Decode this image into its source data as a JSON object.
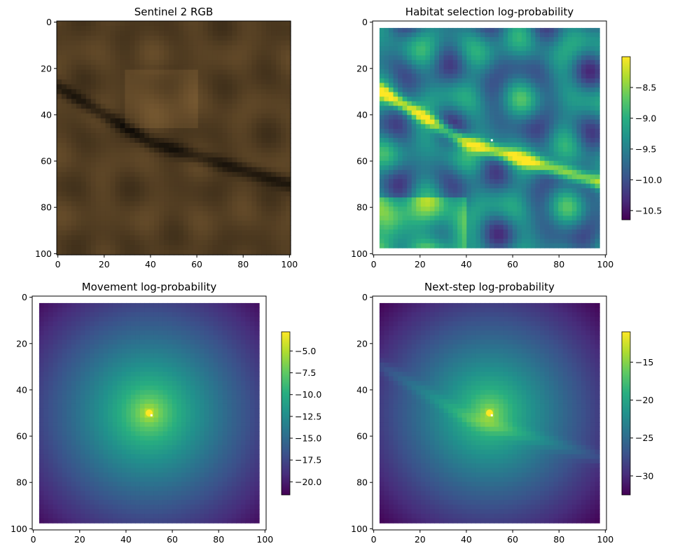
{
  "figure": {
    "background": "#ffffff"
  },
  "chart_data": [
    {
      "id": "rgb",
      "type": "heatmap",
      "title": "Sentinel 2 RGB",
      "xlim": [
        -0.5,
        100.5
      ],
      "ylim": [
        100.5,
        -0.5
      ],
      "xticks": [
        0,
        20,
        40,
        60,
        80,
        100
      ],
      "yticks": [
        0,
        20,
        40,
        60,
        80,
        100
      ],
      "extent": [
        -0.5,
        100.5,
        -0.5,
        100.5
      ],
      "colormap": "rgb",
      "colorbar": null
    },
    {
      "id": "habitat",
      "type": "heatmap",
      "title": "Habitat selection log-probability",
      "xlim": [
        -0.5,
        100.5
      ],
      "ylim": [
        100.5,
        -0.5
      ],
      "xticks": [
        0,
        20,
        40,
        60,
        80,
        100
      ],
      "yticks": [
        0,
        20,
        40,
        60,
        80,
        100
      ],
      "extent": [
        2.5,
        97.5,
        2.5,
        97.5
      ],
      "colormap": "viridis",
      "current_location": [
        51,
        51
      ],
      "colorbar": {
        "vmin": -10.65,
        "vmax": -8.0,
        "ticks": [
          -10.5,
          -10.0,
          -9.5,
          -9.0,
          -8.5
        ],
        "labels": [
          "−10.5",
          "−10.0",
          "−9.5",
          "−9.0",
          "−8.5"
        ]
      }
    },
    {
      "id": "movement",
      "type": "heatmap",
      "title": "Movement log-probability",
      "xlim": [
        -0.5,
        100.5
      ],
      "ylim": [
        100.5,
        -0.5
      ],
      "xticks": [
        0,
        20,
        40,
        60,
        80,
        100
      ],
      "yticks": [
        0,
        20,
        40,
        60,
        80,
        100
      ],
      "extent": [
        2.5,
        97.5,
        2.5,
        97.5
      ],
      "colormap": "viridis",
      "current_location": [
        51,
        51
      ],
      "peak_location": [
        50,
        50
      ],
      "colorbar": {
        "vmin": -21.5,
        "vmax": -2.8,
        "ticks": [
          -20.0,
          -17.5,
          -15.0,
          -12.5,
          -10.0,
          -7.5,
          -5.0
        ],
        "labels": [
          "−20.0",
          "−17.5",
          "−15.0",
          "−12.5",
          "−10.0",
          "−7.5",
          "−5.0"
        ]
      }
    },
    {
      "id": "nextstep",
      "type": "heatmap",
      "title": "Next-step log-probability",
      "xlim": [
        -0.5,
        100.5
      ],
      "ylim": [
        100.5,
        -0.5
      ],
      "xticks": [
        0,
        20,
        40,
        60,
        80,
        100
      ],
      "yticks": [
        0,
        20,
        40,
        60,
        80,
        100
      ],
      "extent": [
        2.5,
        97.5,
        2.5,
        97.5
      ],
      "colormap": "viridis",
      "current_location": [
        51,
        51
      ],
      "peak_location": [
        50,
        50
      ],
      "colorbar": {
        "vmin": -32.5,
        "vmax": -11.0,
        "ticks": [
          -30,
          -25,
          -20,
          -15
        ],
        "labels": [
          "−30",
          "−25",
          "−20",
          "−15"
        ]
      }
    }
  ]
}
